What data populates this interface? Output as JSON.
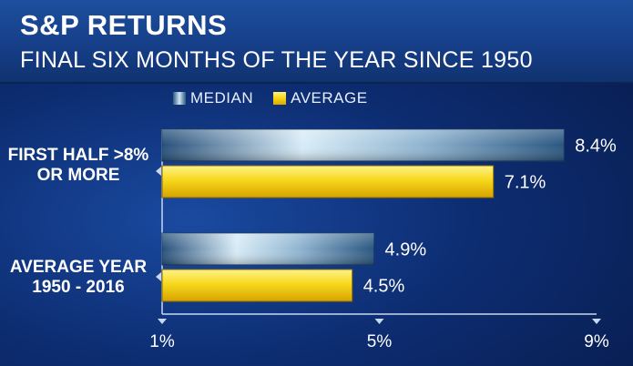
{
  "header": {
    "title": "S&P RETURNS",
    "subtitle": "FINAL SIX MONTHS OF THE YEAR SINCE 1950"
  },
  "chart_data": {
    "type": "bar",
    "orientation": "horizontal",
    "categories": [
      "FIRST HALF >8% OR MORE",
      "AVERAGE YEAR 1950 - 2016"
    ],
    "category_lines": [
      [
        "FIRST HALF >8%",
        "OR MORE"
      ],
      [
        "AVERAGE YEAR",
        "1950 - 2016"
      ]
    ],
    "series": [
      {
        "name": "MEDIAN",
        "values": [
          8.4,
          4.9
        ],
        "labels": [
          "8.4%",
          "4.9%"
        ],
        "color": "#7fa8c8"
      },
      {
        "name": "AVERAGE",
        "values": [
          7.1,
          4.5
        ],
        "labels": [
          "7.1%",
          "4.5%"
        ],
        "color": "#f5d418"
      }
    ],
    "xlim": [
      1,
      9
    ],
    "xticks": [
      1,
      5,
      9
    ],
    "xtick_labels": [
      "1%",
      "5%",
      "9%"
    ],
    "legend_position": "top",
    "grid": false
  },
  "colors": {
    "background": "#0d2d72",
    "header": "#1d4f9e",
    "median_bar": "#7fa8c8",
    "average_bar": "#f5d418",
    "axis": "#c8d8f0"
  }
}
